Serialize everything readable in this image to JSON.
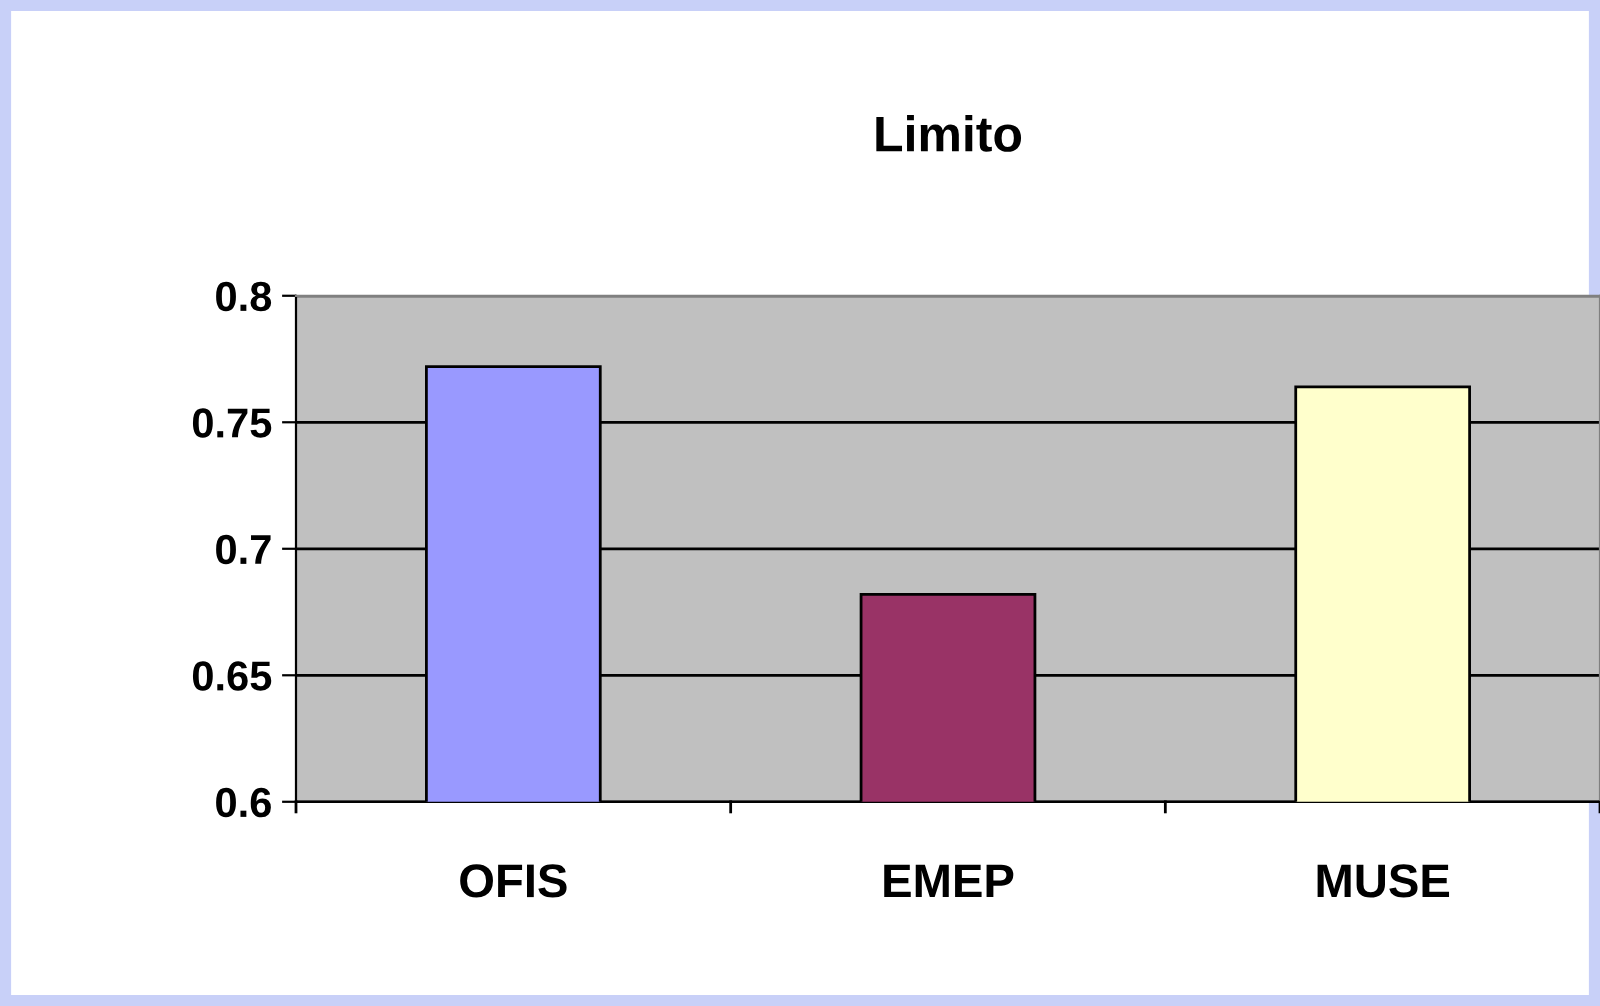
{
  "chart_data": {
    "type": "bar",
    "title": "Limito",
    "categories": [
      "OFIS",
      "EMEP",
      "MUSE"
    ],
    "values": [
      0.772,
      0.682,
      0.764
    ],
    "colors": [
      "#9999ff",
      "#993366",
      "#ffffcc"
    ],
    "ylim": [
      0.6,
      0.8
    ],
    "yticks": [
      0.6,
      0.65,
      0.7,
      0.75,
      0.8
    ],
    "grid": "y",
    "legend": false
  }
}
